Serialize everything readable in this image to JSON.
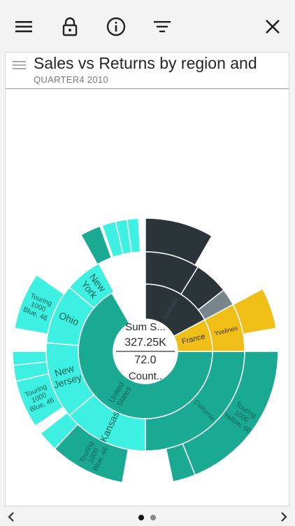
{
  "toolbar": {
    "icons": [
      "menu-icon",
      "lock-icon",
      "info-icon",
      "filter-icon",
      "close-icon"
    ]
  },
  "card": {
    "title": "Sales vs Returns by region and",
    "subtitle": "QUARTER4 2010"
  },
  "pager": {
    "pages": 2,
    "current": 1
  },
  "colors": {
    "teal_dark": "#1aaa93",
    "teal_light": "#3df0e1",
    "charcoal": "#2b3439",
    "slate": "#78868b",
    "gold": "#efbf17"
  },
  "chart_data": {
    "type": "sunburst",
    "center": {
      "line1": "Sum S...",
      "value1": "327.25K",
      "value2": "72.0",
      "line2": "Count.."
    },
    "rings": [
      {
        "level": 1,
        "segments": [
          {
            "label": "United States",
            "start": 90,
            "end": 330,
            "color": "teal_dark"
          },
          {
            "label": "Australia",
            "start": 0,
            "end": 62,
            "color": "charcoal"
          },
          {
            "label": "France",
            "start": 62,
            "end": 90,
            "color": "gold"
          }
        ]
      },
      {
        "level": 2,
        "segments": [
          {
            "label": "California",
            "start": 90,
            "end": 180,
            "color": "teal_dark"
          },
          {
            "label": "Kansas",
            "start": 180,
            "end": 230,
            "color": "teal_light"
          },
          {
            "label": "New Jersey",
            "start": 230,
            "end": 275,
            "color": "teal_light"
          },
          {
            "label": "Ohio",
            "start": 275,
            "end": 310,
            "color": "teal_light"
          },
          {
            "label": "New York",
            "start": 310,
            "end": 332,
            "color": "teal_light"
          },
          {
            "label": "",
            "start": 0,
            "end": 32,
            "color": "charcoal"
          },
          {
            "label": "",
            "start": 32,
            "end": 52,
            "color": "charcoal"
          },
          {
            "label": "",
            "start": 52,
            "end": 62,
            "color": "charcoal"
          },
          {
            "label": "Yvelines",
            "start": 62,
            "end": 90,
            "color": "gold"
          }
        ]
      },
      {
        "level": 3,
        "segments": [
          {
            "label": "Touring 1000 Yellow, 60",
            "start": 90,
            "end": 158,
            "color": "teal_dark"
          },
          {
            "label": "",
            "start": 158,
            "end": 168,
            "color": "teal_dark"
          },
          {
            "label": "Touring 1000 Blue, 46",
            "start": 190,
            "end": 223,
            "color": "teal_dark"
          },
          {
            "label": "",
            "start": 223,
            "end": 232,
            "color": "teal_light"
          },
          {
            "label": "Touring 1000 Blue, 46",
            "start": 236,
            "end": 257,
            "color": "teal_light"
          },
          {
            "label": "",
            "start": 257,
            "end": 264,
            "color": "teal_light"
          },
          {
            "label": "",
            "start": 264,
            "end": 270,
            "color": "teal_light"
          },
          {
            "label": "Touring 1000 Blue, 46",
            "start": 280,
            "end": 305,
            "color": "teal_light"
          },
          {
            "label": "",
            "start": 331,
            "end": 340,
            "color": "teal_dark"
          },
          {
            "label": "",
            "start": 341,
            "end": 347,
            "color": "teal_light"
          },
          {
            "label": "",
            "start": 347,
            "end": 352,
            "color": "teal_light"
          },
          {
            "label": "",
            "start": 352,
            "end": 357,
            "color": "teal_light"
          },
          {
            "label": "",
            "start": 0,
            "end": 30,
            "color": "charcoal"
          },
          {
            "label": "",
            "start": 62,
            "end": 80,
            "color": "gold"
          }
        ]
      }
    ]
  }
}
